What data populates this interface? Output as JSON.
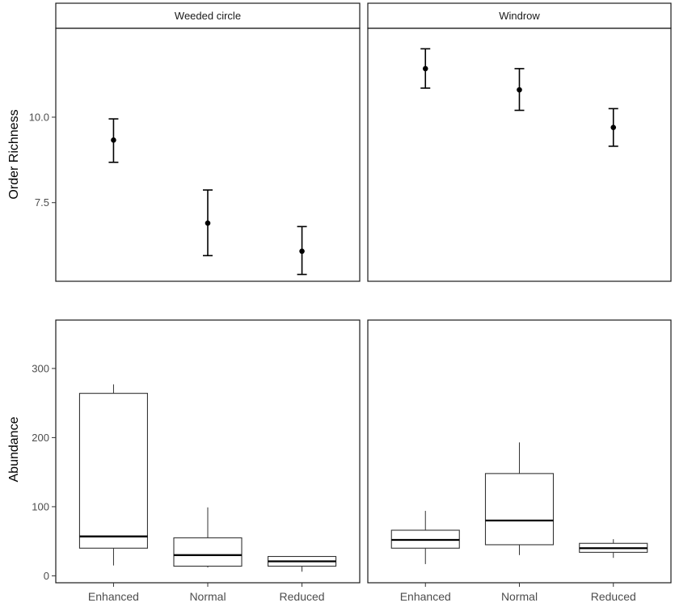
{
  "chart_data": [
    {
      "type": "errorbar",
      "ylabel": "Order Richness",
      "ylim": [
        5.2,
        12.6
      ],
      "yticks": [
        7.5,
        10.0
      ],
      "ytick_labels": [
        "7.5",
        "10.0"
      ],
      "categories": [
        "Enhanced",
        "Normal",
        "Reduced"
      ],
      "facets": [
        {
          "strip": "Weeded circle",
          "points": [
            {
              "category": "Enhanced",
              "mean": 9.33,
              "lower": 8.68,
              "upper": 9.95
            },
            {
              "category": "Normal",
              "mean": 6.9,
              "lower": 5.95,
              "upper": 7.87
            },
            {
              "category": "Reduced",
              "mean": 6.08,
              "lower": 5.4,
              "upper": 6.8
            }
          ]
        },
        {
          "strip": "Windrow",
          "points": [
            {
              "category": "Enhanced",
              "mean": 11.42,
              "lower": 10.85,
              "upper": 12.0
            },
            {
              "category": "Normal",
              "mean": 10.8,
              "lower": 10.2,
              "upper": 11.42
            },
            {
              "category": "Reduced",
              "mean": 9.7,
              "lower": 9.15,
              "upper": 10.25
            }
          ]
        }
      ]
    },
    {
      "type": "boxplot",
      "ylabel": "Abundance",
      "ylim": [
        -10,
        370
      ],
      "yticks": [
        0,
        100,
        200,
        300
      ],
      "ytick_labels": [
        "0",
        "100",
        "200",
        "300"
      ],
      "categories": [
        "Enhanced",
        "Normal",
        "Reduced"
      ],
      "facets": [
        {
          "boxes": [
            {
              "category": "Enhanced",
              "min": 15,
              "q1": 40,
              "median": 57,
              "q3": 264,
              "max": 277
            },
            {
              "category": "Normal",
              "min": 12,
              "q1": 14,
              "median": 30,
              "q3": 55,
              "max": 99
            },
            {
              "category": "Reduced",
              "min": 6,
              "q1": 14,
              "median": 21,
              "q3": 28,
              "max": 28
            }
          ]
        },
        {
          "boxes": [
            {
              "category": "Enhanced",
              "min": 17,
              "q1": 40,
              "median": 52,
              "q3": 66,
              "max": 94
            },
            {
              "category": "Normal",
              "min": 30,
              "q1": 45,
              "median": 80,
              "q3": 148,
              "max": 193
            },
            {
              "category": "Reduced",
              "min": 26,
              "q1": 34,
              "median": 40,
              "q3": 47,
              "max": 53
            }
          ]
        }
      ]
    }
  ]
}
